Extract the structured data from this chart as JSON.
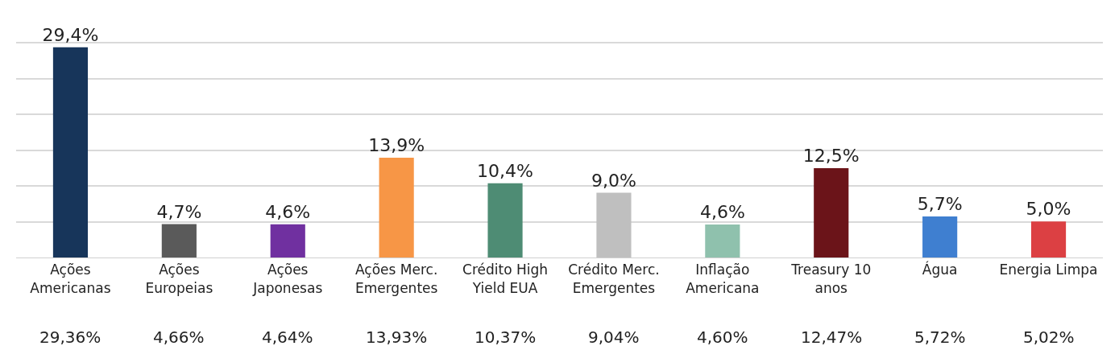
{
  "chart_data": {
    "type": "bar",
    "categories": [
      "Ações\nAmericanas",
      "Ações\nEuropeias",
      "Ações\nJaponesas",
      "Ações Merc.\nEmergentes",
      "Crédito High\nYield EUA",
      "Crédito Merc.\nEmergentes",
      "Inflação\nAmericana",
      "Treasury 10\nanos",
      "Água",
      "Energia Limpa"
    ],
    "values": [
      29.36,
      4.66,
      4.64,
      13.93,
      10.37,
      9.04,
      4.6,
      12.47,
      5.72,
      5.02
    ],
    "colors": [
      "#17355a",
      "#5a5a5a",
      "#7030a0",
      "#f79646",
      "#4e8c74",
      "#bfbfbf",
      "#8fc1ad",
      "#6b1419",
      "#3f7fd0",
      "#dc4043"
    ],
    "value_labels": [
      "29,4%",
      "4,7%",
      "4,6%",
      "13,9%",
      "10,4%",
      "9,0%",
      "4,6%",
      "12,5%",
      "5,7%",
      "5,0%"
    ],
    "annotations": [
      "29,36%",
      "4,66%",
      "4,64%",
      "13,93%",
      "10,37%",
      "9,04%",
      "4,60%",
      "12,47%",
      "5,72%",
      "5,02%"
    ],
    "grid": true,
    "tick_labels": "x"
  }
}
